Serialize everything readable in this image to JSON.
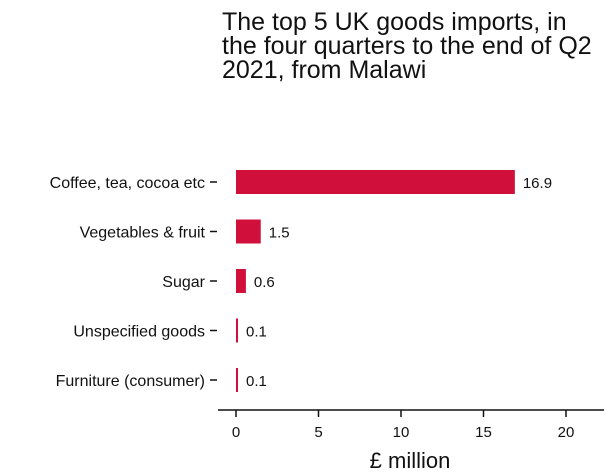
{
  "chart_data": {
    "type": "bar",
    "orientation": "horizontal",
    "title": "The top 5 UK goods imports, in the four quarters to the end of Q2 2021, from Malawi",
    "categories": [
      "Coffee, tea, cocoa etc",
      "Vegetables & fruit",
      "Sugar",
      "Unspecified goods",
      "Furniture (consumer)"
    ],
    "values": [
      16.9,
      1.5,
      0.6,
      0.1,
      0.1
    ],
    "data_labels": [
      "16.9",
      "1.5",
      "0.6",
      "0.1",
      "0.1"
    ],
    "xlabel": "£ million",
    "ylabel": "",
    "xlim": [
      0,
      22.5
    ],
    "xticks": [
      0,
      5,
      10,
      15,
      20
    ],
    "xtick_labels": [
      "0",
      "5",
      "10",
      "15",
      "20"
    ],
    "grid": false,
    "bar_color": "#d0103a"
  }
}
